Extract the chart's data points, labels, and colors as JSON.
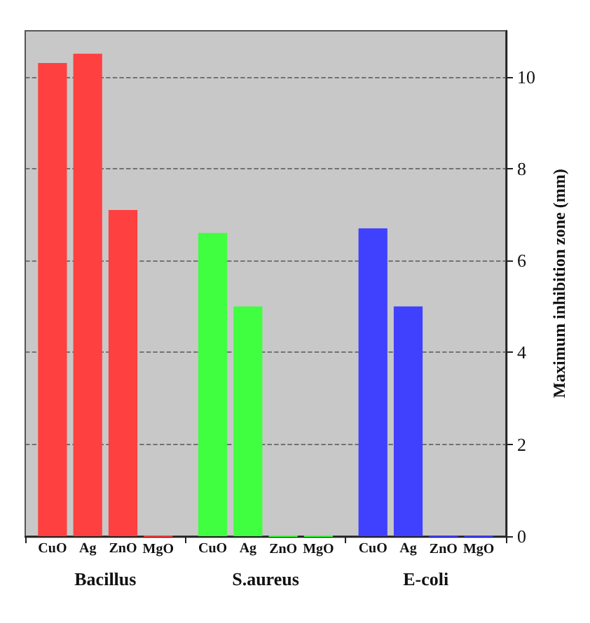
{
  "chart_data": {
    "type": "bar",
    "ylabel": "Maximum inhibition zone (mm)",
    "categories": [
      "Bacillus",
      "S.aureus",
      "E-coli"
    ],
    "series": [
      {
        "name": "CuO",
        "colors": [
          "#ff4040",
          "#40ff40",
          "#4040ff"
        ],
        "values": [
          10.3,
          6.6,
          6.7
        ]
      },
      {
        "name": "Ag",
        "colors": [
          "#ff4040",
          "#40ff40",
          "#4040ff"
        ],
        "values": [
          10.5,
          5.0,
          5.0
        ]
      },
      {
        "name": "ZnO",
        "colors": [
          "#ff4040",
          "#40ff40",
          "#4040ff"
        ],
        "values": [
          7.1,
          0,
          0
        ]
      },
      {
        "name": "MgO",
        "colors": [
          "#ff4040",
          "#40ff40",
          "#4040ff"
        ],
        "values": [
          0,
          0,
          0
        ]
      }
    ],
    "ylim": [
      0,
      11
    ],
    "yticks": [
      0,
      2,
      4,
      6,
      8,
      10
    ],
    "grid": "y"
  }
}
